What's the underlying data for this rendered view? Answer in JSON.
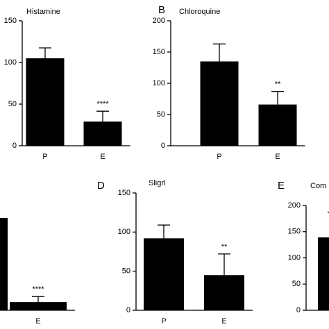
{
  "chart_data": [
    {
      "type": "bar",
      "title": "Histamine",
      "categories": [
        "P",
        "E"
      ],
      "values": [
        105,
        29
      ],
      "errors": [
        12.5,
        12.5
      ],
      "annotation": "****",
      "color": "#000000",
      "ylim": [
        0,
        150
      ],
      "yticks": [
        0,
        50,
        100,
        150
      ]
    },
    {
      "type": "bar",
      "panel_label": "B",
      "title": "Chloroquine",
      "categories": [
        "P",
        "E"
      ],
      "values": [
        135,
        66
      ],
      "errors": [
        28,
        21
      ],
      "annotation": "**",
      "color": "#000000",
      "ylim": [
        0,
        200
      ],
      "yticks": [
        0,
        50,
        100,
        150,
        200
      ]
    },
    {
      "type": "bar",
      "categories": [
        null,
        "E"
      ],
      "values": [
        118,
        10.5
      ],
      "errors": [
        null,
        7
      ],
      "annotation": "****",
      "color": "#000000",
      "ylim": [
        0,
        150
      ]
    },
    {
      "type": "bar",
      "panel_label": "D",
      "title": "Sligrl",
      "categories": [
        "P",
        "E"
      ],
      "values": [
        92,
        45
      ],
      "errors": [
        17,
        27
      ],
      "annotation": "**",
      "color": "#000000",
      "ylim": [
        0,
        150
      ],
      "yticks": [
        0,
        50,
        100,
        150
      ]
    },
    {
      "type": "bar",
      "panel_label": "E",
      "title": "Com",
      "categories": [
        null
      ],
      "values": [
        139
      ],
      "errors": [
        48
      ],
      "color": "#000000",
      "ylim": [
        0,
        200
      ],
      "yticks": [
        0,
        50,
        100,
        150,
        200
      ]
    }
  ]
}
